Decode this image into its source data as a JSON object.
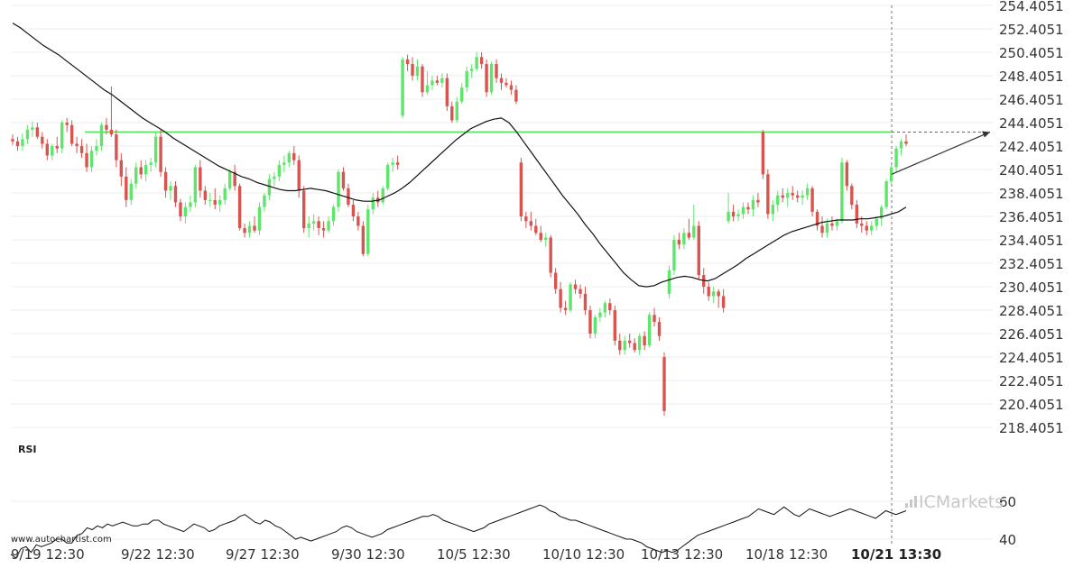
{
  "chart_data": {
    "type": "candlestick",
    "y_axis": {
      "ticks": [
        "254.4051",
        "252.4051",
        "250.4051",
        "248.4051",
        "246.4051",
        "244.4051",
        "242.4051",
        "240.4051",
        "238.4051",
        "236.4051",
        "234.4051",
        "232.4051",
        "230.4051",
        "228.4051",
        "226.4051",
        "224.4051",
        "222.4051",
        "220.4051",
        "218.4051"
      ],
      "ylim": [
        217.4,
        255.0
      ]
    },
    "x_axis": {
      "ticks": [
        "9/19 12:30",
        "9/22 12:30",
        "9/27 12:30",
        "9/30 12:30",
        "10/5 12:30",
        "10/10 12:30",
        "10/13 12:30",
        "10/18 12:30",
        "10/21 13:30"
      ],
      "highlighted": "10/21 13:30"
    },
    "candles_ohlc": [
      [
        243,
        243.4,
        242.5,
        242.8
      ],
      [
        242.8,
        243.2,
        242,
        242.4
      ],
      [
        242.4,
        243.5,
        242,
        243
      ],
      [
        243,
        244.2,
        242.6,
        243.8
      ],
      [
        243.8,
        244.5,
        243.2,
        244
      ],
      [
        244,
        244.4,
        243,
        243.2
      ],
      [
        243.2,
        243.6,
        242.2,
        242.6
      ],
      [
        242.6,
        243,
        241.2,
        241.6
      ],
      [
        241.6,
        242.6,
        241.2,
        242.4
      ],
      [
        242.4,
        243.2,
        241.8,
        242.2
      ],
      [
        242.2,
        244.6,
        241.8,
        244.4
      ],
      [
        244.4,
        244.8,
        243.6,
        244.2
      ],
      [
        244.2,
        244.6,
        242.4,
        242.6
      ],
      [
        242.6,
        243.2,
        241.8,
        242.4
      ],
      [
        242.4,
        243,
        241.4,
        241.8
      ],
      [
        241.8,
        242.6,
        240.2,
        240.6
      ],
      [
        240.6,
        242.4,
        240.2,
        242
      ],
      [
        242,
        243,
        241.6,
        242.4
      ],
      [
        242.4,
        244.4,
        242,
        244.2
      ],
      [
        244.2,
        244.8,
        243.4,
        243.8
      ],
      [
        243.8,
        247.5,
        243.2,
        243.4
      ],
      [
        243.4,
        243.8,
        240.6,
        241.2
      ],
      [
        241.2,
        241.8,
        239,
        239.8
      ],
      [
        239.8,
        240.6,
        237.2,
        237.8
      ],
      [
        237.8,
        239.6,
        237.4,
        239.2
      ],
      [
        239.2,
        241,
        238.8,
        240.6
      ],
      [
        240.6,
        241.2,
        239.6,
        240
      ],
      [
        240,
        241.2,
        239.4,
        240.8
      ],
      [
        240.8,
        241.4,
        240.2,
        241
      ],
      [
        241,
        243.6,
        240.6,
        243.2
      ],
      [
        243.2,
        243.8,
        239.8,
        240.2
      ],
      [
        240.2,
        240.6,
        238,
        238.6
      ],
      [
        238.6,
        239.4,
        237.8,
        239
      ],
      [
        239,
        239.4,
        237.2,
        237.6
      ],
      [
        237.6,
        237.9,
        236,
        236.4
      ],
      [
        236.4,
        237.6,
        235.8,
        237.2
      ],
      [
        237.2,
        238.2,
        236.8,
        237.6
      ],
      [
        237.6,
        240.8,
        237.2,
        240.6
      ],
      [
        240.6,
        241.2,
        238,
        238.6
      ],
      [
        238.6,
        239,
        237.4,
        237.8
      ],
      [
        237.8,
        238.4,
        237.2,
        237.8
      ],
      [
        237.8,
        238.8,
        237,
        237.4
      ],
      [
        237.4,
        238.2,
        236.8,
        237.8
      ],
      [
        237.8,
        239.2,
        237.4,
        238.8
      ],
      [
        238.8,
        240.4,
        238.6,
        240.2
      ],
      [
        240.2,
        240.8,
        238.6,
        239
      ],
      [
        239,
        239.2,
        235.2,
        235.4
      ],
      [
        235.4,
        235.8,
        234.6,
        235
      ],
      [
        235,
        236,
        234.6,
        235.6
      ],
      [
        235.6,
        236.4,
        235,
        235.2
      ],
      [
        235.2,
        237.6,
        234.8,
        237.2
      ],
      [
        237.2,
        238.4,
        236.8,
        238.2
      ],
      [
        238.2,
        240,
        237.8,
        239.6
      ],
      [
        239.6,
        240.2,
        239,
        239.8
      ],
      [
        239.8,
        241.2,
        239.4,
        240.8
      ],
      [
        240.8,
        241.6,
        240.2,
        241
      ],
      [
        241,
        242,
        240.6,
        241.8
      ],
      [
        241.8,
        242.4,
        240.8,
        241.2
      ],
      [
        241.2,
        241.6,
        238,
        238.6
      ],
      [
        238.6,
        239,
        235,
        235.4
      ],
      [
        235.4,
        236.4,
        234.6,
        235.8
      ],
      [
        235.8,
        236.6,
        235.2,
        236
      ],
      [
        236,
        236.4,
        234.8,
        235.4
      ],
      [
        235.4,
        236,
        234.6,
        235.2
      ],
      [
        235.2,
        236.4,
        235,
        236
      ],
      [
        236,
        237.4,
        235.6,
        237.2
      ],
      [
        237.2,
        240.4,
        236.8,
        240.2
      ],
      [
        240.2,
        240.6,
        238.6,
        238.8
      ],
      [
        238.8,
        239.2,
        237.2,
        237.4
      ],
      [
        237.4,
        237.8,
        236,
        236.4
      ],
      [
        236.4,
        236.8,
        235.2,
        235.6
      ],
      [
        235.6,
        236,
        233,
        233.2
      ],
      [
        233.2,
        237.4,
        233,
        237
      ],
      [
        237,
        238.4,
        236.6,
        238
      ],
      [
        238,
        238.6,
        237.2,
        237.6
      ],
      [
        237.6,
        239,
        237.4,
        238.8
      ],
      [
        238.8,
        241,
        238.6,
        240.8
      ],
      [
        240.8,
        241.4,
        240.2,
        241
      ],
      [
        241,
        241.6,
        240.4,
        240.8
      ],
      [
        245,
        250,
        244.8,
        249.8
      ],
      [
        249.8,
        250.2,
        248.8,
        249.4
      ],
      [
        249.4,
        250,
        248,
        248.4
      ],
      [
        248.4,
        249.8,
        248,
        249.2
      ],
      [
        249.2,
        249.4,
        246.6,
        247
      ],
      [
        247,
        248.8,
        246.8,
        247.6
      ],
      [
        247.6,
        248.4,
        247.2,
        248
      ],
      [
        248,
        248.4,
        247.6,
        247.8
      ],
      [
        247.8,
        248.6,
        247.4,
        248.2
      ],
      [
        248.2,
        248.6,
        245.4,
        245.8
      ],
      [
        245.8,
        246.2,
        244.4,
        244.6
      ],
      [
        244.6,
        246.6,
        244.4,
        246.2
      ],
      [
        246.2,
        247.8,
        246,
        247.4
      ],
      [
        247.4,
        249.2,
        247,
        248.8
      ],
      [
        248.8,
        249.4,
        248.2,
        249
      ],
      [
        249,
        250.4,
        248.8,
        250
      ],
      [
        250,
        250.4,
        249,
        249.4
      ],
      [
        249.4,
        249.8,
        246.6,
        247
      ],
      [
        247,
        249.6,
        246.8,
        249.4
      ],
      [
        249.4,
        249.8,
        247.8,
        248.2
      ],
      [
        248.2,
        248.6,
        247.2,
        247.8
      ],
      [
        247.8,
        248.2,
        247.4,
        247.6
      ],
      [
        247.6,
        248,
        246.8,
        247.2
      ],
      [
        247.2,
        247.6,
        246,
        246.2
      ],
      [
        241,
        241.4,
        236,
        236.4
      ],
      [
        236.4,
        236.8,
        235.4,
        236
      ],
      [
        236,
        236.8,
        235.2,
        235.6
      ],
      [
        235.6,
        236.2,
        234.8,
        235
      ],
      [
        235,
        235.6,
        234.2,
        234.4
      ],
      [
        234.4,
        235,
        233.8,
        234.6
      ],
      [
        234.6,
        234.8,
        231.2,
        231.6
      ],
      [
        231.6,
        232,
        229.8,
        230.2
      ],
      [
        230.2,
        230.8,
        228.2,
        228.6
      ],
      [
        228.6,
        229.2,
        228,
        228.4
      ],
      [
        228.4,
        230.8,
        228.2,
        230.6
      ],
      [
        230.6,
        231,
        229.8,
        230.2
      ],
      [
        230.2,
        230.6,
        229.4,
        229.8
      ],
      [
        229.8,
        230.4,
        228,
        228.4
      ],
      [
        228.4,
        228.8,
        226,
        226.4
      ],
      [
        226.4,
        228,
        226,
        227.8
      ],
      [
        227.8,
        228.6,
        227.4,
        228.2
      ],
      [
        228.2,
        229.2,
        227.8,
        229
      ],
      [
        229,
        229.4,
        228,
        228.4
      ],
      [
        228.4,
        228.8,
        225.4,
        225.8
      ],
      [
        225.8,
        226.4,
        224.6,
        225
      ],
      [
        225,
        226.2,
        224.6,
        225.8
      ],
      [
        225.8,
        226.4,
        225.2,
        225.6
      ],
      [
        225.6,
        226,
        224.8,
        225
      ],
      [
        225,
        226.4,
        224.6,
        226.2
      ],
      [
        226.2,
        226.6,
        225,
        225.4
      ],
      [
        225.4,
        228.2,
        225.2,
        228
      ],
      [
        228,
        228.6,
        227,
        227.4
      ],
      [
        227.4,
        227.8,
        225.8,
        226.2
      ],
      [
        224.4,
        224.8,
        219.4,
        219.8
      ],
      [
        229.8,
        232.2,
        229.4,
        231.8
      ],
      [
        231.8,
        234.8,
        231.4,
        234.4
      ],
      [
        234.4,
        235,
        233.6,
        234
      ],
      [
        234,
        235.4,
        233.6,
        235
      ],
      [
        235,
        236.2,
        234.4,
        234.6
      ],
      [
        234.6,
        237.4,
        234.4,
        235.6
      ],
      [
        235.6,
        236,
        231,
        231.4
      ],
      [
        231.4,
        232,
        229.8,
        230.4
      ],
      [
        230.4,
        230.8,
        229.2,
        229.6
      ],
      [
        229.6,
        230.4,
        229,
        230
      ],
      [
        230,
        230.2,
        228.6,
        229.6
      ],
      [
        229.6,
        230.2,
        228.2,
        228.6
      ],
      [
        236,
        238.4,
        235.8,
        236.8
      ],
      [
        236.8,
        237.4,
        236,
        236.4
      ],
      [
        236.4,
        237,
        236,
        236.6
      ],
      [
        236.6,
        237.6,
        236.2,
        237.2
      ],
      [
        237.2,
        237.6,
        236.6,
        237
      ],
      [
        237,
        238.2,
        236.4,
        237.8
      ],
      [
        237.8,
        238.4,
        237.2,
        237.6
      ],
      [
        243.6,
        243.8,
        239.6,
        240
      ],
      [
        240,
        240.4,
        236.2,
        236.6
      ],
      [
        236.6,
        237.8,
        236,
        237.4
      ],
      [
        237.4,
        238.6,
        236.8,
        238.2
      ],
      [
        238.2,
        238.8,
        237.6,
        238
      ],
      [
        238,
        238.8,
        237.2,
        238.4
      ],
      [
        238.4,
        239,
        237.8,
        238.2
      ],
      [
        238.2,
        238.6,
        237.6,
        238
      ],
      [
        238,
        238.6,
        237.4,
        238.2
      ],
      [
        238.2,
        239.2,
        237.8,
        238.8
      ],
      [
        238.8,
        239,
        236.4,
        236.8
      ],
      [
        236.8,
        237,
        235.2,
        235.6
      ],
      [
        235.6,
        236.4,
        234.6,
        235
      ],
      [
        235,
        236.2,
        234.6,
        235.8
      ],
      [
        235.8,
        236.4,
        235.2,
        235.6
      ],
      [
        235.6,
        236.2,
        235.2,
        236
      ],
      [
        236,
        241.4,
        235.8,
        241
      ],
      [
        241,
        241.2,
        238.6,
        239
      ],
      [
        239,
        239.2,
        237,
        237.4
      ],
      [
        237.4,
        237.8,
        235.4,
        235.8
      ],
      [
        235.8,
        236.4,
        235,
        235.6
      ],
      [
        235.6,
        236,
        234.8,
        235.2
      ],
      [
        235.2,
        236,
        234.8,
        235.6
      ],
      [
        235.6,
        236.4,
        235.2,
        236.2
      ],
      [
        236.2,
        237.4,
        235.6,
        237.2
      ],
      [
        237.2,
        239.6,
        237,
        239.4
      ],
      [
        239.4,
        241,
        239.2,
        240.6
      ],
      [
        240.6,
        242.4,
        240.2,
        242.2
      ],
      [
        242.2,
        243,
        241.6,
        242.8
      ],
      [
        242.8,
        243.4,
        242.4,
        242.6
      ]
    ],
    "candle_colors": {
      "up": "#5de66b",
      "down": "#d9534f"
    },
    "moving_average": [
      252.9,
      252.5,
      252.0,
      251.5,
      251.0,
      250.6,
      250.2,
      249.7,
      249.2,
      248.7,
      248.2,
      247.7,
      247.2,
      246.8,
      246.3,
      245.8,
      245.3,
      244.8,
      244.4,
      244.0,
      243.6,
      243.1,
      242.7,
      242.3,
      241.9,
      241.5,
      241.1,
      240.7,
      240.4,
      240.1,
      239.8,
      239.6,
      239.3,
      239.1,
      238.9,
      238.7,
      238.6,
      238.6,
      238.7,
      238.8,
      238.7,
      238.6,
      238.4,
      238.2,
      238.0,
      237.8,
      237.7,
      237.7,
      237.8,
      238.1,
      238.4,
      238.8,
      239.3,
      239.9,
      240.5,
      241.1,
      241.7,
      242.3,
      242.9,
      243.4,
      243.9,
      244.2,
      244.5,
      244.7,
      244.8,
      244.4,
      243.6,
      242.7,
      241.8,
      240.9,
      240.0,
      239.1,
      238.2,
      237.4,
      236.6,
      235.7,
      234.9,
      234.0,
      233.2,
      232.4,
      231.6,
      231.0,
      230.5,
      230.4,
      230.5,
      230.8,
      231.0,
      231.2,
      231.3,
      231.2,
      231.0,
      230.9,
      231.1,
      231.5,
      231.9,
      232.3,
      232.8,
      233.2,
      233.6,
      234.0,
      234.4,
      234.8,
      235.1,
      235.3,
      235.5,
      235.7,
      235.9,
      236.0,
      236.1,
      236.1,
      236.1,
      236.2,
      236.2,
      236.3,
      236.4,
      236.6,
      236.8,
      237.2
    ],
    "resistance_level": 243.6,
    "projection": {
      "from": 240.0,
      "to": 243.6
    },
    "rsi": {
      "label": "RSI",
      "ticks": [
        "60",
        "40"
      ],
      "ylim": [
        30,
        65
      ],
      "values": [
        32,
        30,
        35,
        36,
        33,
        37,
        36,
        37,
        38,
        40,
        40,
        38,
        38,
        42,
        43,
        46,
        45,
        47,
        46,
        48,
        47,
        48,
        49,
        48,
        47,
        47,
        48,
        48,
        50,
        50,
        48,
        47,
        46,
        45,
        44,
        46,
        48,
        47,
        46,
        44,
        45,
        47,
        48,
        49,
        50,
        52,
        53,
        51,
        49,
        48,
        50,
        49,
        47,
        46,
        44,
        42,
        40,
        41,
        40,
        39,
        40,
        41,
        42,
        43,
        44,
        46,
        47,
        46,
        44,
        43,
        42,
        41,
        42,
        43,
        45,
        46,
        47,
        48,
        49,
        50,
        51,
        52,
        52,
        53,
        52,
        50,
        49,
        48,
        47,
        46,
        45,
        44,
        45,
        46,
        48,
        49,
        50,
        51,
        52,
        53,
        54,
        55,
        56,
        57,
        58,
        57,
        55,
        54,
        52,
        51,
        50,
        50,
        49,
        48,
        47,
        46,
        45,
        44,
        43,
        42,
        41,
        40,
        40,
        39,
        38,
        36,
        35,
        34,
        33,
        34,
        33,
        34,
        36,
        38,
        40,
        42,
        43,
        44,
        45,
        46,
        47,
        48,
        49,
        50,
        51,
        52,
        54,
        56,
        55,
        54,
        53,
        55,
        57,
        55,
        53,
        52,
        54,
        56,
        55,
        54,
        53,
        52,
        53,
        54,
        55,
        56,
        55,
        54,
        53,
        52,
        51,
        53,
        55,
        54,
        53,
        54,
        55
      ]
    },
    "watermark": "www.autochartist.com",
    "brand": "ICMarkets"
  }
}
